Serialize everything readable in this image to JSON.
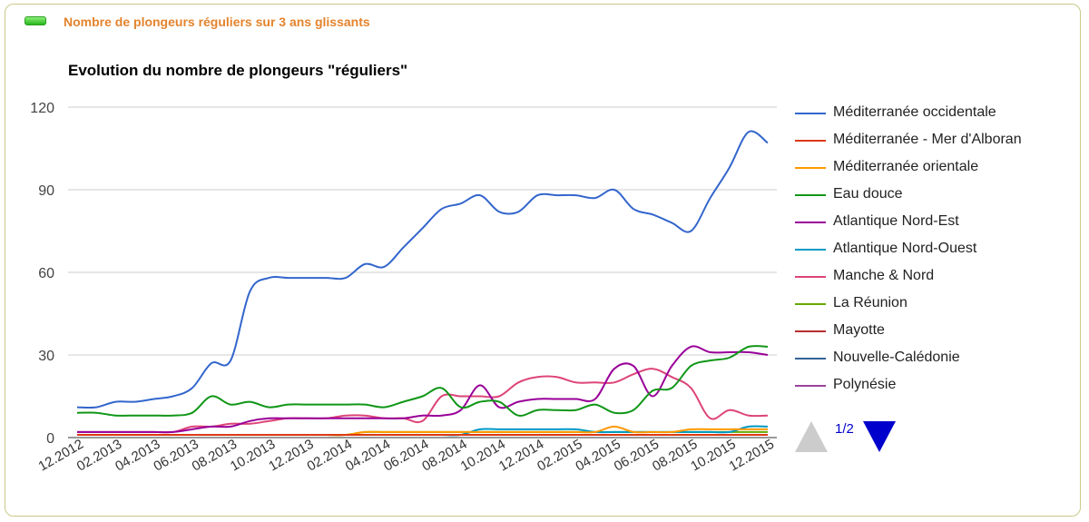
{
  "panel": {
    "title": "Nombre de plongeurs réguliers sur 3 ans glissants"
  },
  "pager": {
    "page": "1/2"
  },
  "chart_data": {
    "type": "line",
    "title": "Evolution du nombre de plongeurs \"réguliers\"",
    "ylim": [
      0,
      120
    ],
    "yticks": [
      0,
      30,
      60,
      90,
      120
    ],
    "grid": true,
    "legend_position": "right",
    "x": [
      "12.2012",
      "01.2013",
      "02.2013",
      "03.2013",
      "04.2013",
      "05.2013",
      "06.2013",
      "07.2013",
      "08.2013",
      "09.2013",
      "10.2013",
      "11.2013",
      "12.2013",
      "01.2014",
      "02.2014",
      "03.2014",
      "04.2014",
      "05.2014",
      "06.2014",
      "07.2014",
      "08.2014",
      "09.2014",
      "10.2014",
      "11.2014",
      "12.2014",
      "01.2015",
      "02.2015",
      "03.2015",
      "04.2015",
      "05.2015",
      "06.2015",
      "07.2015",
      "08.2015",
      "09.2015",
      "10.2015",
      "11.2015",
      "12.2015"
    ],
    "xtick_labels": [
      "12.2012",
      "02.2013",
      "04.2013",
      "06.2013",
      "08.2013",
      "10.2013",
      "12.2013",
      "02.2014",
      "04.2014",
      "06.2014",
      "08.2014",
      "10.2014",
      "12.2014",
      "02.2015",
      "04.2015",
      "06.2015",
      "08.2015",
      "10.2015",
      "12.2015"
    ],
    "series": [
      {
        "name": "Méditerranée occidentale",
        "color": "#3366cc",
        "values": [
          11,
          11,
          13,
          13,
          14,
          15,
          18,
          27,
          28,
          53,
          58,
          58,
          58,
          58,
          58,
          63,
          62,
          69,
          76,
          83,
          85,
          88,
          82,
          82,
          88,
          88,
          88,
          87,
          90,
          83,
          81,
          78,
          75,
          87,
          98,
          111,
          107
        ]
      },
      {
        "name": "Méditerranée - Mer d'Alboran",
        "color": "#dc3912",
        "values": [
          1,
          1,
          1,
          1,
          1,
          1,
          1,
          1,
          1,
          1,
          1,
          1,
          1,
          1,
          1,
          1,
          1,
          1,
          1,
          1,
          1,
          1,
          1,
          1,
          1,
          1,
          1,
          1,
          1,
          1,
          1,
          1,
          1,
          1,
          1,
          1,
          1
        ]
      },
      {
        "name": "Méditerranée orientale",
        "color": "#ff9900",
        "values": [
          1,
          1,
          1,
          1,
          1,
          1,
          1,
          1,
          1,
          1,
          1,
          1,
          1,
          1,
          1,
          2,
          2,
          2,
          2,
          2,
          2,
          2,
          2,
          2,
          2,
          2,
          2,
          2,
          4,
          2,
          2,
          2,
          3,
          3,
          3,
          3,
          3
        ]
      },
      {
        "name": "Eau douce",
        "color": "#109618",
        "values": [
          9,
          9,
          8,
          8,
          8,
          8,
          9,
          15,
          12,
          13,
          11,
          12,
          12,
          12,
          12,
          12,
          11,
          13,
          15,
          18,
          11,
          13,
          13,
          8,
          10,
          10,
          10,
          12,
          9,
          10,
          17,
          18,
          26,
          28,
          29,
          33,
          33
        ]
      },
      {
        "name": "Atlantique Nord-Est",
        "color": "#990099",
        "values": [
          2,
          2,
          2,
          2,
          2,
          2,
          3,
          4,
          4,
          6,
          7,
          7,
          7,
          7,
          7,
          7,
          7,
          7,
          8,
          8,
          10,
          19,
          11,
          13,
          14,
          14,
          14,
          14,
          25,
          26,
          15,
          26,
          33,
          31,
          31,
          31,
          30
        ]
      },
      {
        "name": "Atlantique Nord-Ouest",
        "color": "#0099c6",
        "values": [
          1,
          1,
          1,
          1,
          1,
          1,
          1,
          1,
          1,
          1,
          1,
          1,
          1,
          1,
          1,
          1,
          1,
          1,
          1,
          1,
          1,
          3,
          3,
          3,
          3,
          3,
          3,
          2,
          2,
          2,
          2,
          2,
          2,
          2,
          2,
          4,
          4
        ]
      },
      {
        "name": "Manche & Nord",
        "color": "#dd4477",
        "values": [
          2,
          2,
          2,
          2,
          2,
          2,
          4,
          4,
          5,
          5,
          6,
          7,
          7,
          7,
          8,
          8,
          7,
          7,
          6,
          15,
          15,
          15,
          15,
          20,
          22,
          22,
          20,
          20,
          20,
          23,
          25,
          22,
          18,
          7,
          10,
          8,
          8
        ]
      },
      {
        "name": "La Réunion",
        "color": "#66aa00",
        "values": [
          1,
          1,
          1,
          1,
          1,
          1,
          1,
          1,
          1,
          1,
          1,
          1,
          1,
          1,
          1,
          2,
          2,
          2,
          2,
          2,
          2,
          2,
          2,
          2,
          2,
          2,
          2,
          2,
          2,
          2,
          2,
          2,
          2,
          2,
          2,
          2,
          2
        ]
      },
      {
        "name": "Mayotte",
        "color": "#b82e2e",
        "values": [
          1,
          1,
          1,
          1,
          1,
          1,
          1,
          1,
          1,
          1,
          1,
          1,
          1,
          1,
          1,
          1,
          1,
          1,
          1,
          1,
          1,
          1,
          1,
          1,
          1,
          1,
          1,
          1,
          1,
          1,
          1,
          1,
          1,
          1,
          1,
          1,
          1
        ]
      },
      {
        "name": "Nouvelle-Calédonie",
        "color": "#316395",
        "values": [
          1,
          1,
          1,
          1,
          1,
          1,
          1,
          1,
          1,
          1,
          1,
          1,
          1,
          1,
          1,
          1,
          1,
          1,
          1,
          1,
          1,
          1,
          1,
          1,
          1,
          1,
          1,
          1,
          1,
          1,
          1,
          1,
          1,
          1,
          1,
          1,
          1
        ]
      },
      {
        "name": "Polynésie",
        "color": "#994499",
        "values": [
          1,
          1,
          1,
          1,
          1,
          1,
          1,
          1,
          1,
          1,
          1,
          1,
          1,
          1,
          1,
          1,
          1,
          1,
          1,
          1,
          1,
          1,
          1,
          1,
          1,
          1,
          1,
          1,
          1,
          1,
          1,
          1,
          1,
          1,
          1,
          1,
          1
        ]
      }
    ]
  }
}
